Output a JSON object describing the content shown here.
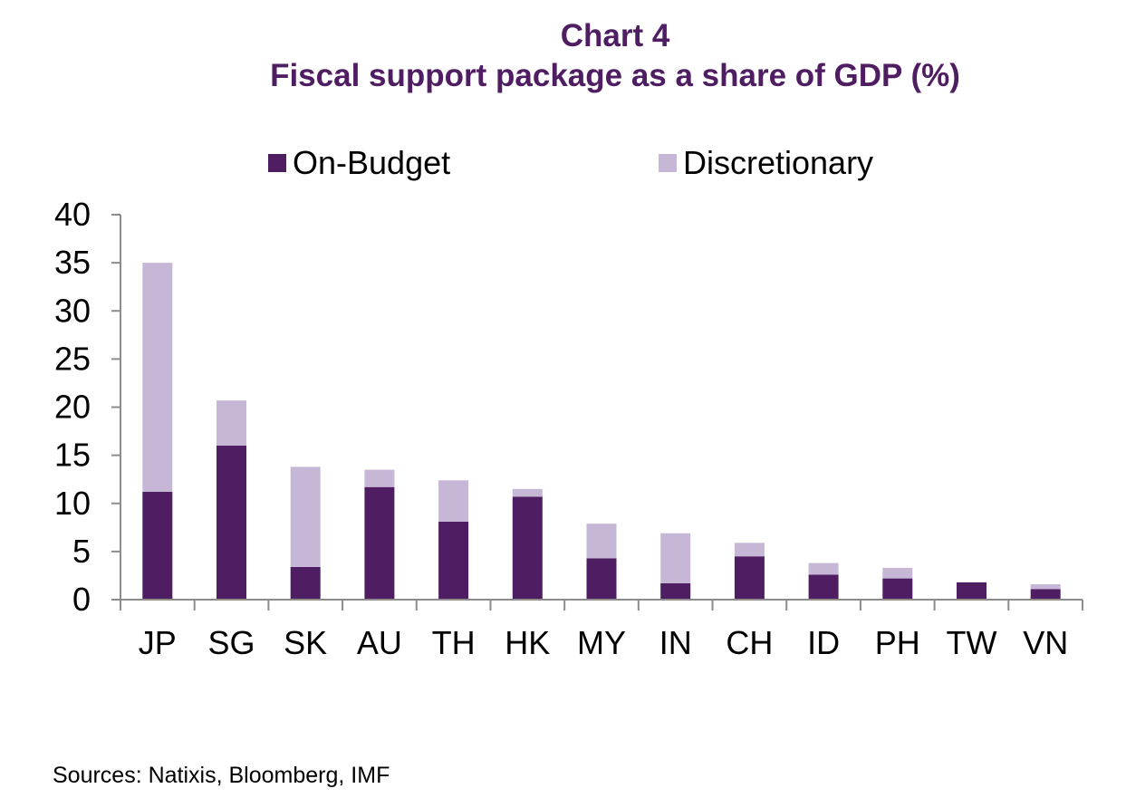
{
  "chart_data": {
    "type": "bar",
    "stacked": true,
    "title": "Chart 4",
    "subtitle": "Fiscal support package as a share of GDP (%)",
    "categories": [
      "JP",
      "SG",
      "SK",
      "AU",
      "TH",
      "HK",
      "MY",
      "IN",
      "CH",
      "ID",
      "PH",
      "TW",
      "VN"
    ],
    "series": [
      {
        "name": "On-Budget",
        "color": "#4f1d62",
        "values": [
          11.2,
          16.0,
          3.4,
          11.7,
          8.1,
          10.7,
          4.3,
          1.7,
          4.5,
          2.6,
          2.2,
          1.8,
          1.1
        ]
      },
      {
        "name": "Discretionary",
        "color": "#c6b7d6",
        "values": [
          23.8,
          4.7,
          10.4,
          1.8,
          4.3,
          0.8,
          3.6,
          5.2,
          1.4,
          1.2,
          1.1,
          0.0,
          0.5
        ]
      }
    ],
    "ylim": [
      0,
      40
    ],
    "yticks": [
      0,
      5,
      10,
      15,
      20,
      25,
      30,
      35,
      40
    ],
    "legend_position": "top",
    "grid": false,
    "source": "Sources: Natixis, Bloomberg, IMF"
  }
}
